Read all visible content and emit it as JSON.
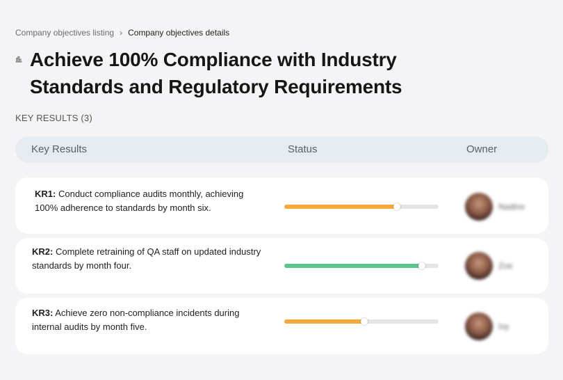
{
  "breadcrumb": {
    "parent": "Company objectives listing",
    "separator": "›",
    "current": "Company objectives details"
  },
  "objective": {
    "icon": "building-chart-icon",
    "title": "Achieve 100% Compliance with Industry Standards and Regulatory Requirements"
  },
  "key_results_label": "KEY RESULTS (3)",
  "table": {
    "columns": {
      "key_results": "Key Results",
      "status": "Status",
      "owner": "Owner"
    },
    "rows": [
      {
        "id": "KR1:",
        "text": "Conduct compliance audits monthly, achieving 100% adherence to standards by month six.",
        "progress": 0.73,
        "progress_color": "#f7a93b",
        "owner": "Nadine"
      },
      {
        "id": "KR2:",
        "text": "Complete retraining of QA staff on updated industry standards by month four.",
        "progress": 0.89,
        "progress_color": "#5cc48e",
        "owner": "Zoe"
      },
      {
        "id": "KR3:",
        "text": "Achieve zero non-compliance incidents during internal audits by month five.",
        "progress": 0.52,
        "progress_color": "#f7a93b",
        "owner": "Ivy"
      }
    ]
  }
}
